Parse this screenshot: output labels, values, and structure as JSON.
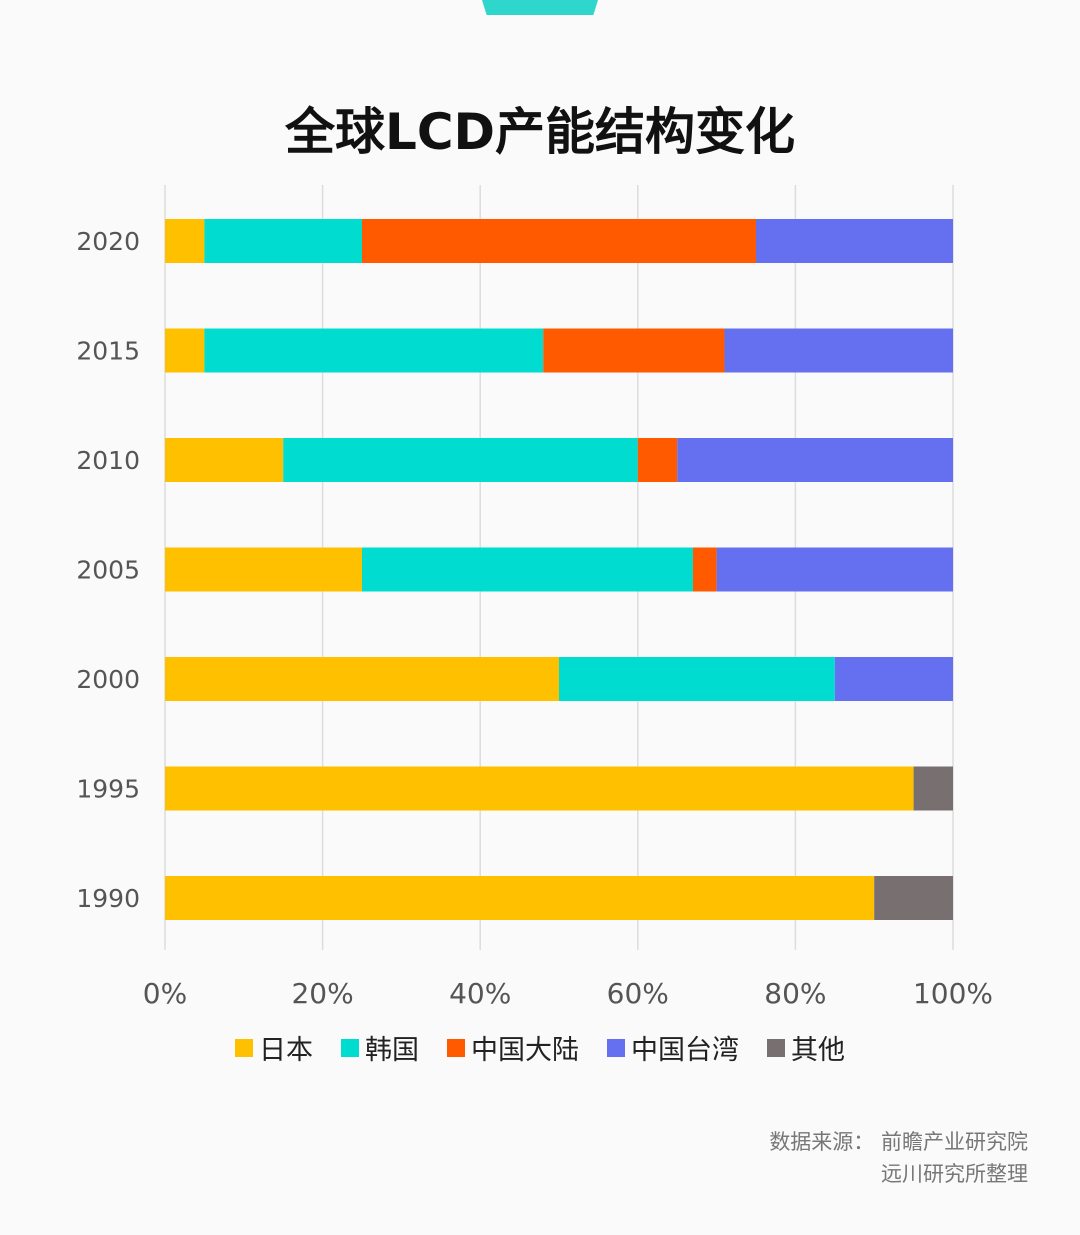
{
  "chart_data": {
    "type": "bar",
    "orientation": "horizontal",
    "stacked": true,
    "title": "全球LCD产能结构变化",
    "categories": [
      "2020",
      "2015",
      "2010",
      "2005",
      "2000",
      "1995",
      "1990"
    ],
    "series": [
      {
        "name": "日本",
        "color": "#ffc000",
        "values": [
          5,
          5,
          15,
          25,
          50,
          95,
          90
        ]
      },
      {
        "name": "韩国",
        "color": "#00dcd0",
        "values": [
          20,
          43,
          45,
          42,
          35,
          0,
          0
        ]
      },
      {
        "name": "中国大陆",
        "color": "#ff5a00",
        "values": [
          50,
          23,
          5,
          3,
          0,
          0,
          0
        ]
      },
      {
        "name": "中国台湾",
        "color": "#6470f0",
        "values": [
          25,
          29,
          35,
          30,
          15,
          0,
          0
        ]
      },
      {
        "name": "其他",
        "color": "#787070",
        "values": [
          0,
          0,
          0,
          0,
          0,
          5,
          10
        ]
      }
    ],
    "xlim": [
      0,
      100
    ],
    "xticks": [
      "0%",
      "20%",
      "40%",
      "60%",
      "80%",
      "100%"
    ],
    "grid": true,
    "legend_placement": "bottom"
  },
  "source": {
    "line1": "数据来源：  前瞻产业研究院",
    "line2": "远川研究所整理"
  }
}
